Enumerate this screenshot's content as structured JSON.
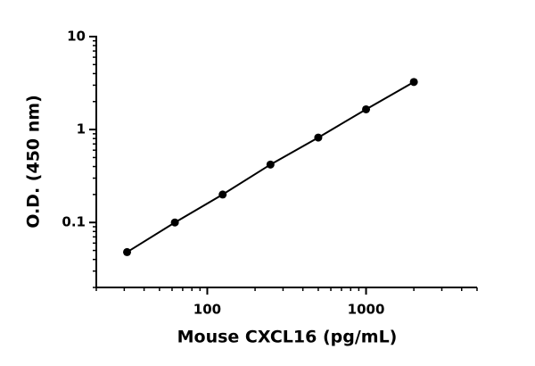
{
  "chart_data": {
    "type": "line",
    "x_label": "Mouse CXCL16 (pg/mL)",
    "y_label": "O.D. (450 nm)",
    "x": [
      31.25,
      62.5,
      125,
      250,
      500,
      1000,
      2000
    ],
    "series": [
      {
        "color": "#000000",
        "values": [
          0.048,
          0.1,
          0.2,
          0.42,
          0.82,
          1.65,
          3.25
        ]
      }
    ],
    "xlim": [
      20,
      5000
    ],
    "ylim": [
      0.02,
      10
    ],
    "xticks": [
      100,
      1000
    ],
    "yticks": [
      0.1,
      1,
      10
    ],
    "xminorticks": [
      20,
      30,
      40,
      50,
      60,
      70,
      80,
      90,
      200,
      300,
      400,
      500,
      600,
      700,
      800,
      900,
      2000,
      3000,
      4000,
      5000
    ],
    "yminorticks": [
      0.02,
      0.03,
      0.04,
      0.05,
      0.06,
      0.07,
      0.08,
      0.09,
      0.2,
      0.3,
      0.4,
      0.5,
      0.6,
      0.7,
      0.8,
      0.9,
      2,
      3,
      4,
      5,
      6,
      7,
      8,
      9
    ],
    "xscale": "log",
    "yscale": "log",
    "grid": false
  }
}
